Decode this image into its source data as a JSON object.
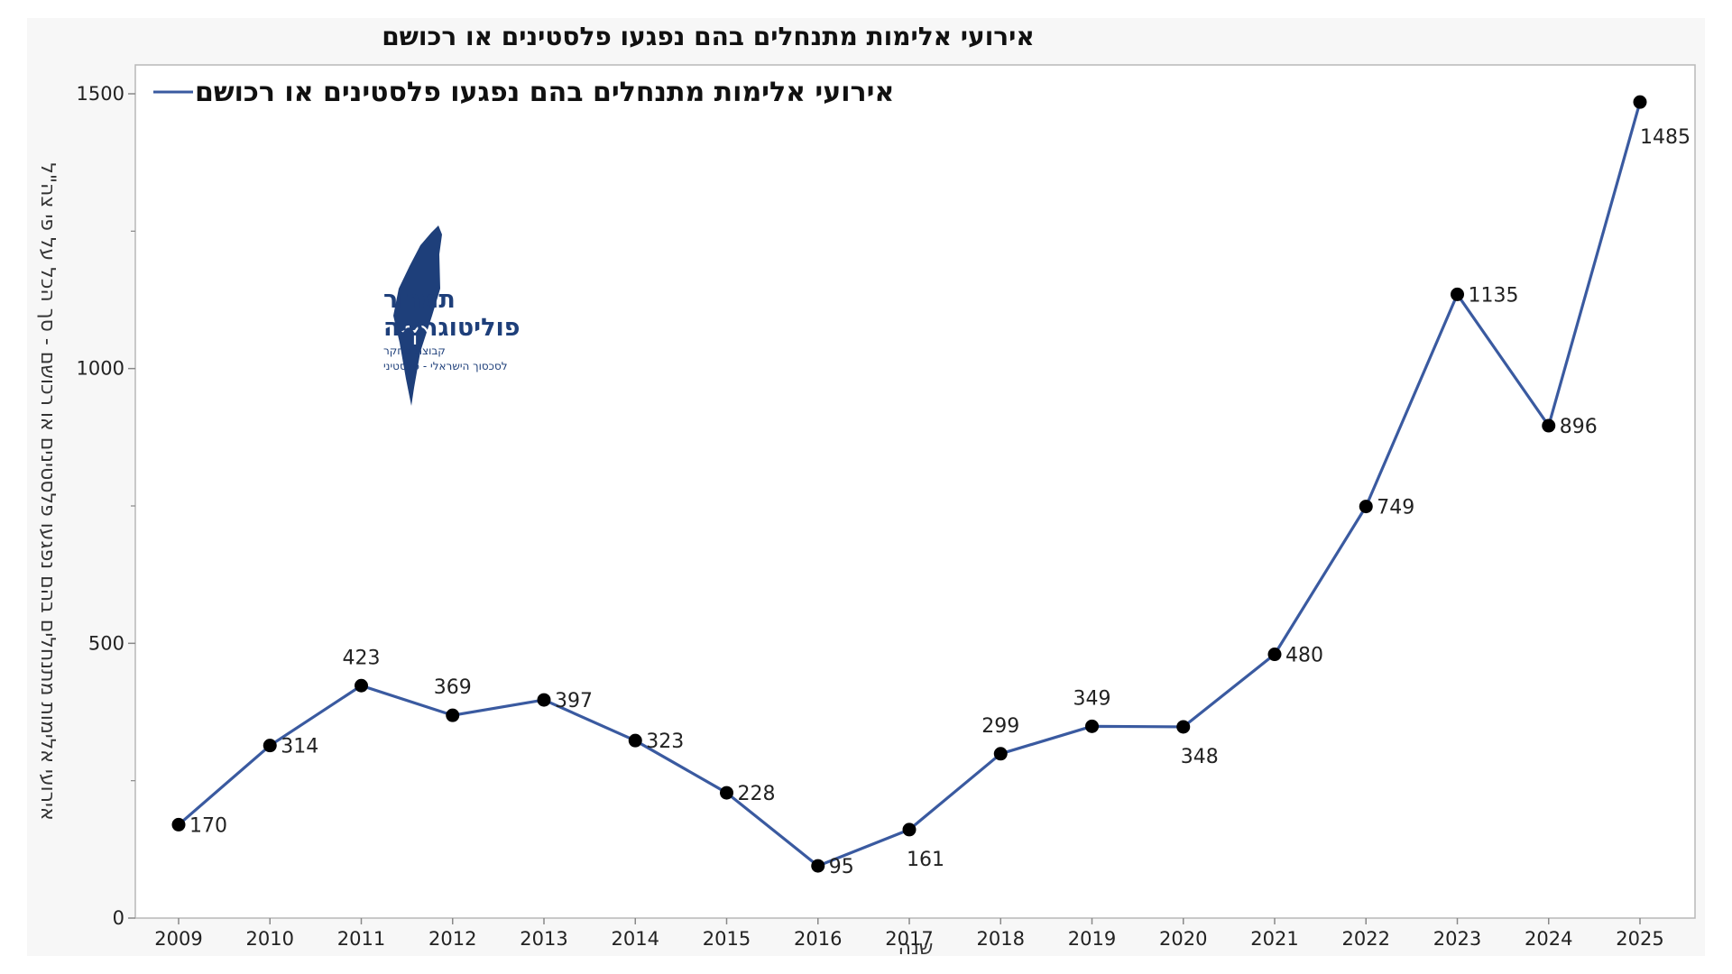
{
  "chart_data": {
    "type": "line",
    "title": "אירועי אלימות מתנחלים בהם נפגעו פלסטינים או רכושם",
    "legend": [
      "אירועי אלימות מתנחלים בהם נפגעו פלסטינים או רכושם"
    ],
    "legend_position": "top-left",
    "xlabel": "שנה",
    "ylabel": "אירועי אלימות מתנחלים בהם נפגעו פלסטינים או רכושם - סך הכל על פי צה\"ל",
    "categories": [
      "2009",
      "2010",
      "2011",
      "2012",
      "2013",
      "2014",
      "2015",
      "2016",
      "2017",
      "2018",
      "2019",
      "2020",
      "2021",
      "2022",
      "2023",
      "2024",
      "2025"
    ],
    "series": [
      {
        "name": "אירועי אלימות מתנחלים בהם נפגעו פלסטינים או רכושם",
        "values": [
          170,
          314,
          423,
          369,
          397,
          323,
          228,
          95,
          161,
          299,
          349,
          348,
          480,
          749,
          1135,
          896,
          1485
        ],
        "color": "#3a5aa0"
      }
    ],
    "ylim": [
      0,
      1550
    ],
    "yticks": [
      0,
      500,
      1000,
      1500
    ],
    "grid": false
  },
  "logo": {
    "line1": "תמרור",
    "line2": "פוליטוגרפיה",
    "line3": "קבוצת מחקר",
    "line4": "לסכסוך הישראלי - פלסטיני",
    "color": "#1e3f7a"
  }
}
